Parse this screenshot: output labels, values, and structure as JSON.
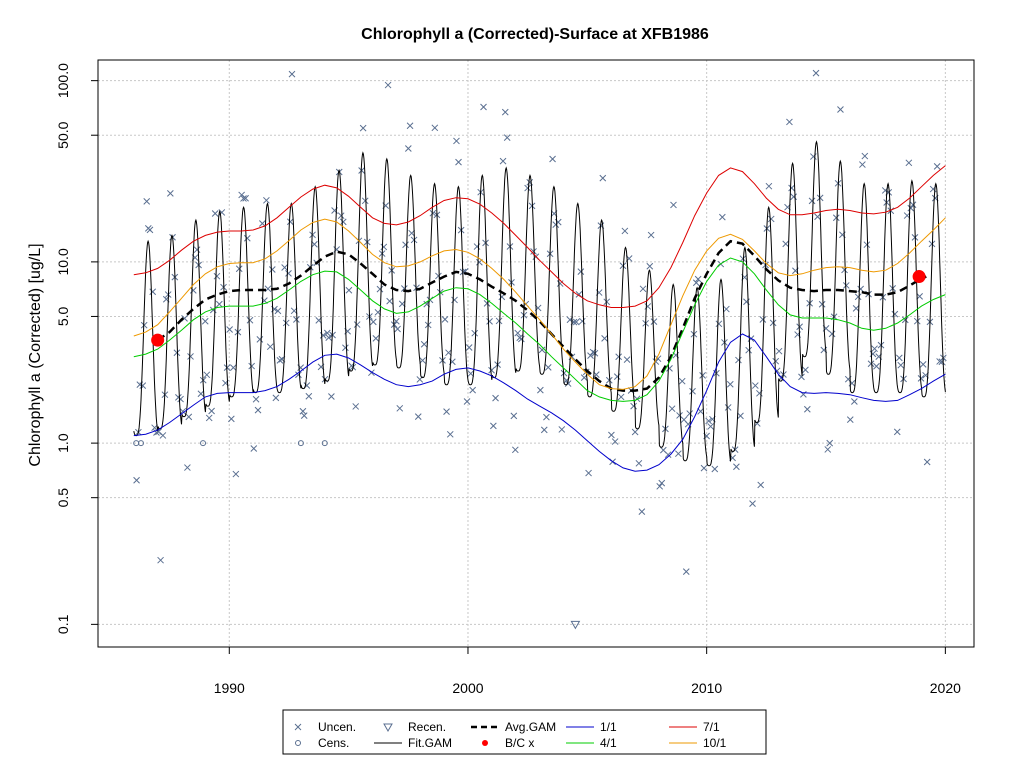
{
  "chart_data": {
    "type": "line",
    "title": "Chlorophyll a (Corrected)-Surface at XFB1986",
    "ylabel": "Chlorophyll a (Corrected) [ug/L]",
    "xlabel": "",
    "y_scale": "log",
    "xlim": [
      1984.5,
      2021.2
    ],
    "ylim": [
      0.075,
      130
    ],
    "x_ticks": [
      "1990",
      "2000",
      "2010",
      "2020"
    ],
    "x_tick_values": [
      1990,
      2000,
      2010,
      2020
    ],
    "y_ticks": [
      "0.1",
      "0.5",
      "1.0",
      "5.0",
      "10.0",
      "50.0",
      "100.0"
    ],
    "y_tick_values": [
      0.1,
      0.5,
      1,
      5,
      10,
      50,
      100
    ],
    "grid": true,
    "legend_position": "bottom",
    "legend": [
      {
        "key": "uncen",
        "label": "Uncen.",
        "symbol": "x",
        "color": "#5a6f90"
      },
      {
        "key": "recen",
        "label": "Recen.",
        "symbol": "triangle-down",
        "color": "#5a6f90"
      },
      {
        "key": "avg",
        "label": "Avg.GAM",
        "symbol": "dashed",
        "color": "#000000"
      },
      {
        "key": "q1",
        "label": "1/1",
        "symbol": "line",
        "color": "#0000cc"
      },
      {
        "key": "q7",
        "label": "7/1",
        "symbol": "line",
        "color": "#dd0000"
      },
      {
        "key": "cens",
        "label": "Cens.",
        "symbol": "circle",
        "color": "#5a6f90"
      },
      {
        "key": "fit",
        "label": "Fit.GAM",
        "symbol": "line",
        "color": "#000000"
      },
      {
        "key": "bc",
        "label": "B/C x",
        "symbol": "dot",
        "color": "#ff0000"
      },
      {
        "key": "q4",
        "label": "4/1",
        "symbol": "line",
        "color": "#00cc00"
      },
      {
        "key": "q10",
        "label": "10/1",
        "symbol": "line",
        "color": "#ee9900"
      }
    ],
    "series": [
      {
        "name": "Avg.GAM",
        "color": "#000000",
        "style": "dashed",
        "x": [
          1987.0,
          1987.5,
          1988,
          1988.5,
          1989,
          1989.5,
          1990,
          1990.5,
          1991,
          1991.5,
          1992,
          1992.5,
          1993,
          1993.5,
          1994,
          1994.5,
          1995,
          1995.5,
          1996,
          1996.5,
          1997,
          1997.5,
          1998,
          1998.5,
          1999,
          1999.5,
          2000,
          2000.5,
          2001,
          2001.5,
          2002,
          2002.5,
          2003,
          2003.5,
          2004,
          2004.5,
          2005,
          2005.5,
          2006,
          2006.5,
          2007,
          2007.5,
          2008,
          2008.5,
          2009,
          2009.5,
          2010,
          2010.5,
          2011,
          2011.5,
          2012,
          2012.5,
          2013,
          2013.5,
          2014,
          2014.5,
          2015,
          2015.5,
          2016,
          2016.5,
          2017,
          2017.5,
          2018,
          2018.5,
          2019,
          2019.2
        ],
        "y": [
          3.7,
          4.1,
          4.8,
          5.5,
          6.2,
          6.6,
          6.9,
          7.0,
          7.0,
          7.0,
          7.1,
          7.6,
          8.4,
          9.5,
          10.7,
          11.4,
          11.0,
          9.8,
          8.6,
          7.5,
          7.0,
          6.9,
          7.1,
          7.7,
          8.3,
          8.8,
          8.6,
          8.0,
          7.3,
          6.7,
          6.1,
          5.4,
          4.7,
          4.0,
          3.4,
          2.9,
          2.5,
          2.2,
          2.0,
          1.95,
          1.95,
          2.0,
          2.3,
          3.0,
          4.3,
          6.3,
          8.6,
          11.2,
          13.0,
          12.6,
          10.8,
          9.1,
          7.9,
          7.2,
          7.0,
          6.9,
          7.0,
          7.0,
          6.9,
          6.8,
          6.6,
          6.6,
          6.8,
          7.4,
          8.1,
          8.3
        ]
      },
      {
        "name": "1/1",
        "color": "#0000cc",
        "style": "solid",
        "x": [
          1986,
          1986.5,
          1987,
          1987.5,
          1988,
          1988.5,
          1989,
          1989.5,
          1990,
          1990.5,
          1991,
          1991.5,
          1992,
          1992.5,
          1993,
          1993.5,
          1994,
          1994.5,
          1995,
          1995.5,
          1996,
          1996.5,
          1997,
          1997.5,
          1998,
          1998.5,
          1999,
          1999.5,
          2000,
          2000.5,
          2001,
          2001.5,
          2002,
          2002.5,
          2003,
          2003.5,
          2004,
          2004.5,
          2005,
          2005.5,
          2006,
          2006.5,
          2007,
          2007.5,
          2008,
          2008.5,
          2009,
          2009.5,
          2010,
          2010.5,
          2011,
          2011.5,
          2012,
          2012.5,
          2013,
          2013.5,
          2014,
          2014.5,
          2015,
          2015.5,
          2016,
          2016.5,
          2017,
          2017.5,
          2018,
          2018.5,
          2019,
          2019.5,
          2020
        ],
        "y": [
          1.1,
          1.12,
          1.18,
          1.3,
          1.45,
          1.62,
          1.8,
          1.88,
          1.9,
          1.9,
          1.9,
          1.95,
          2.05,
          2.25,
          2.5,
          2.8,
          3.05,
          3.1,
          2.95,
          2.7,
          2.45,
          2.25,
          2.1,
          2.05,
          2.1,
          2.2,
          2.4,
          2.55,
          2.6,
          2.5,
          2.35,
          2.15,
          1.95,
          1.75,
          1.6,
          1.47,
          1.33,
          1.18,
          1.03,
          0.9,
          0.8,
          0.73,
          0.7,
          0.71,
          0.76,
          0.87,
          1.05,
          1.4,
          1.95,
          2.8,
          3.6,
          4.0,
          3.7,
          3.0,
          2.4,
          2.05,
          1.9,
          1.88,
          1.9,
          1.88,
          1.85,
          1.78,
          1.72,
          1.7,
          1.72,
          1.85,
          2.0,
          2.2,
          2.4
        ]
      },
      {
        "name": "4/1",
        "color": "#00cc00",
        "style": "solid",
        "x": [
          1986,
          1986.5,
          1987,
          1987.5,
          1988,
          1988.5,
          1989,
          1989.5,
          1990,
          1990.5,
          1991,
          1991.5,
          1992,
          1992.5,
          1993,
          1993.5,
          1994,
          1994.5,
          1995,
          1995.5,
          1996,
          1996.5,
          1997,
          1997.5,
          1998,
          1998.5,
          1999,
          1999.5,
          2000,
          2000.5,
          2001,
          2001.5,
          2002,
          2002.5,
          2003,
          2003.5,
          2004,
          2004.5,
          2005,
          2005.5,
          2006,
          2006.5,
          2007,
          2007.5,
          2008,
          2008.5,
          2009,
          2009.5,
          2010,
          2010.5,
          2011,
          2011.5,
          2012,
          2012.5,
          2013,
          2013.5,
          2014,
          2014.5,
          2015,
          2015.5,
          2016,
          2016.5,
          2017,
          2017.5,
          2018,
          2018.5,
          2019,
          2019.5,
          2020
        ],
        "y": [
          3.0,
          3.1,
          3.3,
          3.7,
          4.2,
          4.8,
          5.3,
          5.6,
          5.7,
          5.7,
          5.7,
          5.9,
          6.3,
          7.0,
          7.8,
          8.5,
          8.9,
          8.8,
          8.0,
          7.0,
          6.1,
          5.5,
          5.2,
          5.3,
          5.7,
          6.3,
          6.9,
          7.2,
          7.1,
          6.6,
          5.9,
          5.2,
          4.6,
          4.0,
          3.5,
          3.0,
          2.6,
          2.25,
          1.95,
          1.8,
          1.72,
          1.7,
          1.72,
          1.85,
          2.2,
          2.9,
          4.1,
          5.8,
          7.8,
          9.6,
          10.5,
          10.0,
          8.6,
          7.0,
          5.8,
          5.1,
          4.9,
          4.9,
          4.9,
          4.8,
          4.6,
          4.3,
          4.2,
          4.3,
          4.6,
          5.1,
          5.7,
          6.2,
          6.6
        ]
      },
      {
        "name": "7/1",
        "color": "#dd0000",
        "style": "solid",
        "x": [
          1986,
          1986.5,
          1987,
          1987.5,
          1988,
          1988.5,
          1989,
          1989.5,
          1990,
          1990.5,
          1991,
          1991.5,
          1992,
          1992.5,
          1993,
          1993.5,
          1994,
          1994.5,
          1995,
          1995.5,
          1996,
          1996.5,
          1997,
          1997.5,
          1998,
          1998.5,
          1999,
          1999.5,
          2000,
          2000.5,
          2001,
          2001.5,
          2002,
          2002.5,
          2003,
          2003.5,
          2004,
          2004.5,
          2005,
          2005.5,
          2006,
          2006.5,
          2007,
          2007.5,
          2008,
          2008.5,
          2009,
          2009.5,
          2010,
          2010.5,
          2011,
          2011.5,
          2012,
          2012.5,
          2013,
          2013.5,
          2014,
          2014.5,
          2015,
          2015.5,
          2016,
          2016.5,
          2017,
          2017.5,
          2018,
          2018.5,
          2019,
          2019.5,
          2020
        ],
        "y": [
          8.5,
          8.7,
          9.2,
          10.2,
          11.6,
          13.0,
          14.0,
          14.6,
          14.8,
          14.8,
          15.0,
          15.8,
          17.5,
          20.0,
          22.8,
          25.2,
          26.5,
          25.6,
          23.0,
          20.0,
          17.5,
          16.3,
          16.0,
          16.6,
          18.0,
          20.0,
          21.8,
          22.6,
          22.3,
          20.8,
          18.6,
          16.3,
          14.0,
          12.0,
          10.2,
          8.8,
          7.6,
          6.7,
          6.1,
          5.8,
          5.6,
          5.6,
          5.7,
          6.1,
          7.2,
          9.3,
          12.8,
          18.0,
          24.0,
          30.0,
          33.0,
          31.5,
          27.0,
          22.5,
          19.5,
          18.2,
          18.2,
          18.6,
          19.2,
          19.5,
          19.2,
          18.6,
          18.4,
          18.8,
          20.0,
          22.5,
          26.0,
          30.0,
          34.0
        ]
      },
      {
        "name": "10/1",
        "color": "#ee9900",
        "style": "solid",
        "x": [
          1986,
          1986.5,
          1987,
          1987.5,
          1988,
          1988.5,
          1989,
          1989.5,
          1990,
          1990.5,
          1991,
          1991.5,
          1992,
          1992.5,
          1993,
          1993.5,
          1994,
          1994.5,
          1995,
          1995.5,
          1996,
          1996.5,
          1997,
          1997.5,
          1998,
          1998.5,
          1999,
          1999.5,
          2000,
          2000.5,
          2001,
          2001.5,
          2002,
          2002.5,
          2003,
          2003.5,
          2004,
          2004.5,
          2005,
          2005.5,
          2006,
          2006.5,
          2007,
          2007.5,
          2008,
          2008.5,
          2009,
          2009.5,
          2010,
          2010.5,
          2011,
          2011.5,
          2012,
          2012.5,
          2013,
          2013.5,
          2014,
          2014.5,
          2015,
          2015.5,
          2016,
          2016.5,
          2017,
          2017.5,
          2018,
          2018.5,
          2019,
          2019.5,
          2020
        ],
        "y": [
          3.9,
          4.1,
          4.5,
          5.3,
          6.3,
          7.5,
          8.6,
          9.4,
          9.8,
          9.9,
          9.9,
          10.4,
          11.5,
          13.1,
          15.0,
          16.5,
          17.2,
          16.6,
          14.8,
          12.8,
          11.0,
          9.9,
          9.4,
          9.5,
          10.0,
          10.8,
          11.5,
          11.7,
          11.3,
          10.4,
          9.2,
          8.0,
          6.8,
          5.7,
          4.8,
          4.0,
          3.3,
          2.8,
          2.4,
          2.1,
          2.0,
          1.98,
          2.05,
          2.35,
          3.1,
          4.5,
          6.5,
          9.0,
          11.5,
          13.5,
          14.2,
          13.3,
          11.5,
          9.8,
          8.7,
          8.4,
          8.6,
          9.0,
          9.3,
          9.4,
          9.3,
          9.0,
          8.8,
          9.0,
          9.8,
          11.2,
          13.0,
          15.0,
          17.5
        ]
      }
    ],
    "fit_gam": {
      "name": "Fit.GAM",
      "color": "#000000",
      "start_year": 1986,
      "end_year": 2020,
      "description_points": "seasonal oscillation between minima and maxima per year",
      "yearly_min": [
        1.1,
        1.2,
        1.4,
        1.6,
        1.8,
        1.9,
        1.9,
        2.0,
        2.2,
        2.5,
        2.7,
        2.6,
        2.3,
        2.1,
        2.1,
        2.3,
        2.5,
        2.4,
        2.1,
        1.8,
        1.5,
        1.2,
        0.95,
        0.8,
        0.75,
        0.9,
        1.3,
        2.2,
        3.0,
        2.4,
        1.9,
        1.9,
        1.9,
        1.8,
        1.7
      ],
      "yearly_max": [
        13,
        14,
        17,
        19,
        20,
        21,
        21,
        26,
        32,
        40,
        37,
        30,
        27,
        26,
        30,
        33,
        30,
        26,
        21,
        17,
        12,
        9,
        7.5,
        7.2,
        8,
        12,
        20,
        35,
        46,
        36,
        27,
        27,
        28,
        27,
        27
      ]
    },
    "bc_points": [
      {
        "x": 1987.0,
        "y": 3.7
      },
      {
        "x": 2018.9,
        "y": 8.3
      }
    ]
  }
}
